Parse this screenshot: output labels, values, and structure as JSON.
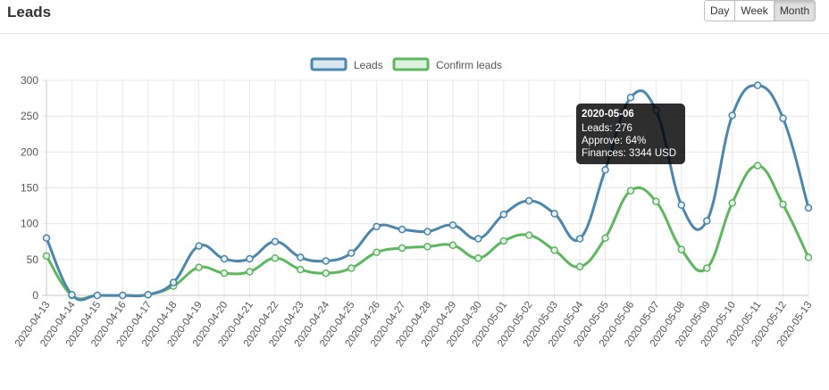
{
  "header": {
    "title": "Leads",
    "periods": [
      {
        "label": "Day",
        "active": false
      },
      {
        "label": "Week",
        "active": false
      },
      {
        "label": "Month",
        "active": true
      }
    ]
  },
  "tooltip": {
    "title": "2020-05-06",
    "lines": [
      "Leads: 276",
      "Approve: 64%",
      "Finances: 3344 USD"
    ]
  },
  "chart_data": {
    "type": "line",
    "title": "",
    "xlabel": "",
    "ylabel": "",
    "ylim": [
      0,
      300
    ],
    "yticks": [
      0,
      50,
      100,
      150,
      200,
      250,
      300
    ],
    "grid": true,
    "legend_position": "top-center",
    "categories": [
      "2020-04-13",
      "2020-04-14",
      "2020-04-15",
      "2020-04-16",
      "2020-04-17",
      "2020-04-18",
      "2020-04-19",
      "2020-04-20",
      "2020-04-21",
      "2020-04-22",
      "2020-04-23",
      "2020-04-24",
      "2020-04-25",
      "2020-04-26",
      "2020-04-27",
      "2020-04-28",
      "2020-04-29",
      "2020-04-30",
      "2020-05-01",
      "2020-05-02",
      "2020-05-03",
      "2020-05-04",
      "2020-05-05",
      "2020-05-06",
      "2020-05-07",
      "2020-05-08",
      "2020-05-09",
      "2020-05-10",
      "2020-05-11",
      "2020-05-12",
      "2020-05-13"
    ],
    "series": [
      {
        "name": "Leads",
        "color": "#4a86ae",
        "values": [
          80,
          1,
          0,
          0,
          1,
          18,
          69,
          51,
          51,
          75,
          53,
          48,
          59,
          96,
          92,
          89,
          98,
          79,
          113,
          132,
          114,
          79,
          175,
          276,
          258,
          126,
          104,
          251,
          293,
          247,
          122
        ]
      },
      {
        "name": "Confirm leads",
        "color": "#5cb85c",
        "values": [
          55,
          0,
          0,
          0,
          1,
          13,
          39,
          31,
          33,
          52,
          36,
          31,
          38,
          60,
          66,
          68,
          70,
          52,
          76,
          84,
          63,
          40,
          80,
          146,
          131,
          64,
          38,
          129,
          181,
          127,
          53
        ]
      }
    ]
  }
}
